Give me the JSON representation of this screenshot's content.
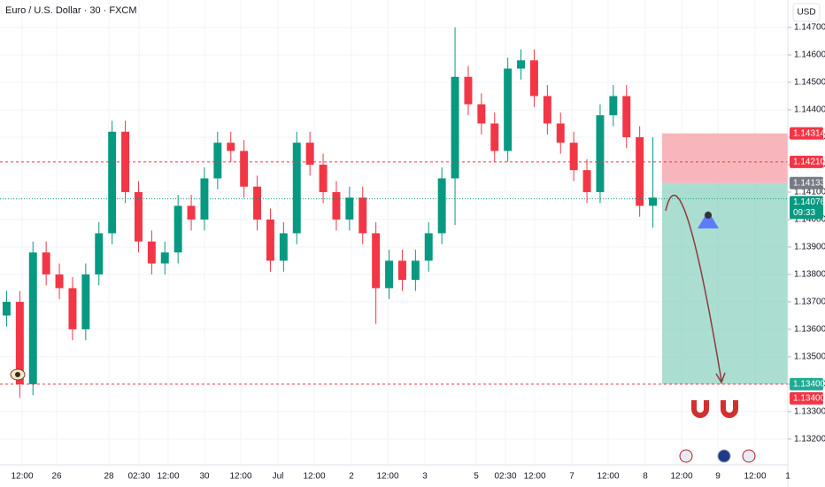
{
  "chart_data": {
    "type": "candlestick",
    "title": "Euro / U.S. Dollar · 30 · FXCM",
    "currency": "USD",
    "up_color": "#089981",
    "down_color": "#f23645",
    "open": [
      1.1365,
      1.137,
      1.134,
      1.1388,
      1.138,
      1.1375,
      1.136,
      1.138,
      1.1395,
      1.1432,
      1.141,
      1.1392,
      1.1384,
      1.1388,
      1.1405,
      1.14,
      1.1415,
      1.1428,
      1.1425,
      1.1412,
      1.14,
      1.1385,
      1.1395,
      1.1428,
      1.142,
      1.141,
      1.14,
      1.1408,
      1.1395,
      1.1375,
      1.1385,
      1.1378,
      1.1385,
      1.1395,
      1.1415,
      1.1452,
      1.1442,
      1.1435,
      1.1425,
      1.1455,
      1.1458,
      1.1445,
      1.1435,
      1.1428,
      1.1418,
      1.141,
      1.1438,
      1.1445,
      1.143,
      1.1405
    ],
    "high": [
      1.1374,
      1.1374,
      1.1392,
      1.1392,
      1.1384,
      1.1379,
      1.1384,
      1.1399,
      1.1436,
      1.1436,
      1.1414,
      1.1396,
      1.1392,
      1.1409,
      1.1409,
      1.1419,
      1.1432,
      1.1432,
      1.1429,
      1.1416,
      1.1404,
      1.1399,
      1.1432,
      1.1432,
      1.1424,
      1.1414,
      1.1412,
      1.1412,
      1.1399,
      1.1389,
      1.1389,
      1.1389,
      1.1399,
      1.1419,
      1.147,
      1.1456,
      1.1446,
      1.1439,
      1.1459,
      1.1462,
      1.1462,
      1.1449,
      1.1439,
      1.1432,
      1.1422,
      1.1442,
      1.1449,
      1.1449,
      1.1434,
      1.143
    ],
    "low": [
      1.1361,
      1.1335,
      1.1336,
      1.1376,
      1.1371,
      1.1356,
      1.1356,
      1.1376,
      1.1391,
      1.1406,
      1.1388,
      1.138,
      1.138,
      1.1384,
      1.1396,
      1.1396,
      1.1411,
      1.1421,
      1.1408,
      1.1396,
      1.1381,
      1.1381,
      1.1391,
      1.1416,
      1.1406,
      1.1396,
      1.1396,
      1.1391,
      1.1362,
      1.1371,
      1.1374,
      1.1374,
      1.1381,
      1.1391,
      1.1398,
      1.1438,
      1.1431,
      1.1421,
      1.1421,
      1.1451,
      1.1441,
      1.1431,
      1.1424,
      1.1414,
      1.1406,
      1.1406,
      1.1434,
      1.1426,
      1.1401,
      1.1397
    ],
    "close": [
      1.137,
      1.134,
      1.1388,
      1.138,
      1.1375,
      1.136,
      1.138,
      1.1395,
      1.1432,
      1.141,
      1.1392,
      1.1384,
      1.1388,
      1.1405,
      1.14,
      1.1415,
      1.1428,
      1.1425,
      1.1412,
      1.14,
      1.1385,
      1.1395,
      1.1428,
      1.142,
      1.141,
      1.14,
      1.1408,
      1.1395,
      1.1375,
      1.1385,
      1.1378,
      1.1385,
      1.1395,
      1.1415,
      1.1452,
      1.1442,
      1.1435,
      1.1425,
      1.1455,
      1.1458,
      1.1445,
      1.1435,
      1.1428,
      1.1418,
      1.141,
      1.1438,
      1.1445,
      1.143,
      1.1405,
      1.1408
    ],
    "x_labels": [
      "12:00",
      "26",
      "28",
      "02:30",
      "12:00",
      "30",
      "12:00",
      "Jul",
      "12:00",
      "2",
      "12:00",
      "3",
      "5",
      "02:30",
      "12:00",
      "7",
      "12:00",
      "8",
      "12:00",
      "9",
      "12:00",
      "1"
    ],
    "ylim": [
      1.13106,
      1.148
    ],
    "yticks": [
      {
        "value": 1.132,
        "label": "1.13200"
      },
      {
        "value": 1.133,
        "label": "1.13300"
      },
      {
        "value": 1.134,
        "label": "1.13400"
      },
      {
        "value": 1.135,
        "label": "1.13500"
      },
      {
        "value": 1.136,
        "label": "1.13600"
      },
      {
        "value": 1.137,
        "label": "1.13700"
      },
      {
        "value": 1.138,
        "label": "1.13800"
      },
      {
        "value": 1.139,
        "label": "1.13900"
      },
      {
        "value": 1.14,
        "label": "1.14000"
      },
      {
        "value": 1.141,
        "label": "1.14100"
      },
      {
        "value": 1.142,
        "label": "1.14200"
      },
      {
        "value": 1.143,
        "label": "1.14300"
      },
      {
        "value": 1.144,
        "label": "1.14400"
      },
      {
        "value": 1.145,
        "label": "1.14500"
      },
      {
        "value": 1.146,
        "label": "1.14600"
      },
      {
        "value": 1.147,
        "label": "1.14700"
      }
    ],
    "grid": true,
    "position": {
      "stop": 1.14314,
      "entry": 1.14133,
      "target": 1.134
    },
    "price_tags": [
      {
        "value": 1.14314,
        "color": "#f23645"
      },
      {
        "value": 1.1421,
        "label": "1.14210",
        "color": "#f23645"
      },
      {
        "value": 1.14133,
        "color": "#787b86"
      },
      {
        "value": 1.14076,
        "color": "#089981",
        "countdown": "09:33"
      },
      {
        "value": 1.134,
        "label": "1.13400",
        "color": "#22ab94"
      },
      {
        "value": 1.134,
        "label": "1.13400",
        "color": "#f23645"
      }
    ]
  }
}
